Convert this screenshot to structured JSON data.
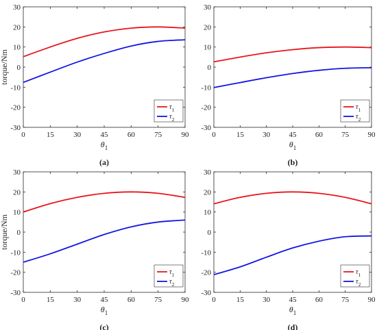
{
  "chart_data": [
    {
      "type": "line",
      "caption": "(a)",
      "xlabel": "θ1",
      "ylabel": "torque/Nm",
      "xlim": [
        0,
        90
      ],
      "ylim": [
        -30,
        30
      ],
      "xticks": [
        0,
        15,
        30,
        45,
        60,
        75,
        90
      ],
      "yticks": [
        -30,
        -20,
        -10,
        0,
        10,
        20,
        30
      ],
      "legend_position": "lower-right",
      "series": [
        {
          "name": "τ1",
          "color": "#e8141a",
          "x": [
            0,
            15,
            30,
            45,
            60,
            75,
            90
          ],
          "y": [
            5.2,
            10.0,
            14.3,
            17.5,
            19.4,
            20.0,
            19.4
          ]
        },
        {
          "name": "τ2",
          "color": "#1414e6",
          "x": [
            0,
            15,
            30,
            45,
            60,
            75,
            90
          ],
          "y": [
            -7.6,
            -2.5,
            2.5,
            6.8,
            10.5,
            12.8,
            13.6
          ]
        }
      ]
    },
    {
      "type": "line",
      "caption": "(b)",
      "xlabel": "θ1",
      "ylabel": "",
      "xlim": [
        0,
        90
      ],
      "ylim": [
        -30,
        30
      ],
      "xticks": [
        0,
        15,
        30,
        45,
        60,
        75,
        90
      ],
      "yticks": [
        -30,
        -20,
        -10,
        0,
        10,
        20,
        30
      ],
      "legend_position": "lower-right",
      "series": [
        {
          "name": "τ1",
          "color": "#e8141a",
          "x": [
            0,
            15,
            30,
            45,
            60,
            75,
            90
          ],
          "y": [
            2.6,
            5.0,
            7.1,
            8.7,
            9.7,
            10.0,
            9.7
          ]
        },
        {
          "name": "τ2",
          "color": "#1414e6",
          "x": [
            0,
            15,
            30,
            45,
            60,
            75,
            90
          ],
          "y": [
            -10.2,
            -7.7,
            -5.3,
            -3.2,
            -1.6,
            -0.6,
            -0.3
          ]
        }
      ]
    },
    {
      "type": "line",
      "caption": "(c)",
      "xlabel": "θ1",
      "ylabel": "torque/Nm",
      "xlim": [
        0,
        90
      ],
      "ylim": [
        -30,
        30
      ],
      "xticks": [
        0,
        15,
        30,
        45,
        60,
        75,
        90
      ],
      "yticks": [
        -30,
        -20,
        -10,
        0,
        10,
        20,
        30
      ],
      "legend_position": "lower-right",
      "series": [
        {
          "name": "τ1",
          "color": "#e8141a",
          "x": [
            0,
            15,
            30,
            45,
            60,
            75,
            90
          ],
          "y": [
            10.0,
            14.2,
            17.3,
            19.3,
            20.0,
            19.3,
            17.3
          ]
        },
        {
          "name": "τ2",
          "color": "#1414e6",
          "x": [
            0,
            15,
            30,
            45,
            60,
            75,
            90
          ],
          "y": [
            -15.0,
            -10.8,
            -6.0,
            -1.2,
            2.6,
            5.0,
            6.0
          ]
        }
      ]
    },
    {
      "type": "line",
      "caption": "(d)",
      "xlabel": "θ1",
      "ylabel": "",
      "xlim": [
        0,
        90
      ],
      "ylim": [
        -30,
        30
      ],
      "xticks": [
        0,
        15,
        30,
        45,
        60,
        75,
        90
      ],
      "yticks": [
        -30,
        -20,
        -10,
        0,
        10,
        20,
        30
      ],
      "legend_position": "lower-right",
      "series": [
        {
          "name": "τ1",
          "color": "#e8141a",
          "x": [
            0,
            15,
            30,
            45,
            60,
            75,
            90
          ],
          "y": [
            14.1,
            17.3,
            19.3,
            20.0,
            19.3,
            17.3,
            14.1
          ]
        },
        {
          "name": "τ2",
          "color": "#1414e6",
          "x": [
            0,
            15,
            30,
            45,
            60,
            75,
            90
          ],
          "y": [
            -21.2,
            -17.3,
            -12.5,
            -7.9,
            -4.5,
            -2.3,
            -1.9
          ]
        }
      ]
    }
  ]
}
